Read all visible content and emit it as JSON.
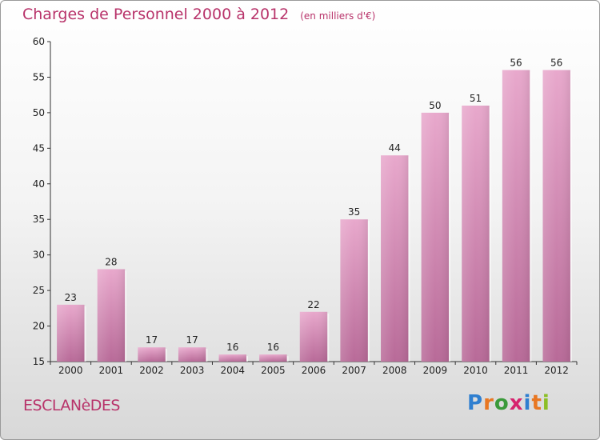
{
  "header": {
    "title": "Charges de Personnel 2000 à 2012",
    "subtitle": "(en milliers d'€)"
  },
  "footer": {
    "commune": "ESCLANèDES",
    "logo_letters": [
      "P",
      "r",
      "o",
      "x",
      "i",
      "t",
      "i"
    ],
    "logo_colors": [
      "#2f7fd0",
      "#e87722",
      "#3a9a3a",
      "#d6246e",
      "#2f7fd0",
      "#e87722",
      "#8cbf26"
    ]
  },
  "chart_data": {
    "type": "bar",
    "title": "Charges de Personnel 2000 à 2012",
    "subtitle": "(en milliers d'€)",
    "categories": [
      "2000",
      "2001",
      "2002",
      "2003",
      "2004",
      "2005",
      "2006",
      "2007",
      "2008",
      "2009",
      "2010",
      "2011",
      "2012"
    ],
    "values": [
      23,
      28,
      17,
      17,
      16,
      16,
      22,
      35,
      44,
      50,
      51,
      56,
      56
    ],
    "ylim": [
      15,
      60
    ],
    "yticks": [
      15,
      20,
      25,
      30,
      35,
      40,
      45,
      50,
      55,
      60
    ],
    "grid": false,
    "bar_color": "#d98fb8"
  }
}
